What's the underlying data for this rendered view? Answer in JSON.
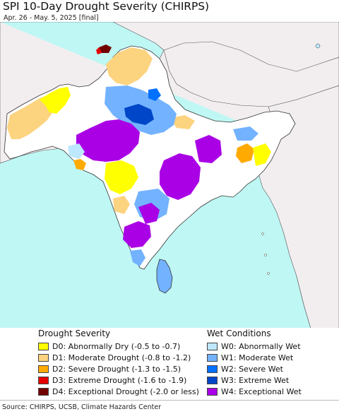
{
  "header": {
    "title": "SPI 10-Day Drought Severity (CHIRPS)",
    "subtitle": "Apr. 26 - May. 5, 2025 [final]"
  },
  "colors": {
    "ocean": "#bff7f4",
    "outside_land": "#f2eef0",
    "neutral_land": "#ffffff",
    "D0": "#ffff00",
    "D1": "#fcd37f",
    "D2": "#ffaa00",
    "D3": "#e60000",
    "D4": "#730000",
    "W0": "#bee8ff",
    "W1": "#73b2ff",
    "W2": "#0070ff",
    "W3": "#0046c8",
    "W4": "#aa00e6"
  },
  "legend": {
    "drought": {
      "title": "Drought Severity",
      "items": [
        {
          "label": "D0: Abnormally Dry (-0.5 to -0.7)",
          "color": "#ffff00"
        },
        {
          "label": "D1: Moderate Drought (-0.8 to -1.2)",
          "color": "#fcd37f"
        },
        {
          "label": "D2: Severe Drought (-1.3 to -1.5)",
          "color": "#ffaa00"
        },
        {
          "label": "D3: Extreme Drought (-1.6 to -1.9)",
          "color": "#e60000"
        },
        {
          "label": "D4: Exceptional Drought (-2.0 or less)",
          "color": "#730000"
        }
      ]
    },
    "wet": {
      "title": "Wet Conditions",
      "items": [
        {
          "label": "W0: Abnormally Wet",
          "color": "#bee8ff"
        },
        {
          "label": "W1: Moderate Wet",
          "color": "#73b2ff"
        },
        {
          "label": "W2: Severe Wet",
          "color": "#0070ff"
        },
        {
          "label": "W3: Extreme Wet",
          "color": "#0046c8"
        },
        {
          "label": "W4: Exceptional Wet",
          "color": "#aa00e6"
        }
      ]
    }
  },
  "footer": {
    "source": "Source: CHIRPS, UCSB, Climate Hazards Center"
  }
}
